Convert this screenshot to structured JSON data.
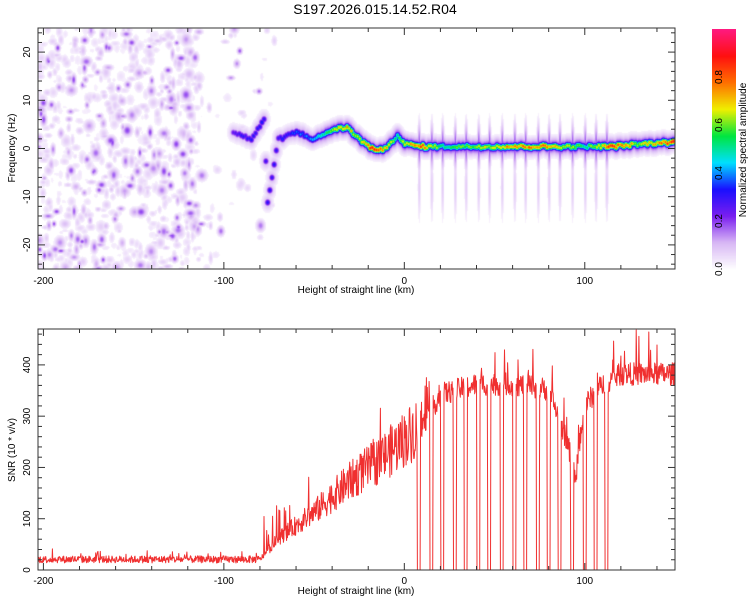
{
  "title": "S197.2026.015.14.52.R04",
  "chart_data": [
    {
      "type": "heatmap",
      "name": "spectrogram",
      "xlabel": "Height of straight line (km)",
      "ylabel": "Frequency (Hz)",
      "xlim": [
        -203,
        150
      ],
      "ylim": [
        -25,
        25
      ],
      "xticks": [
        -200,
        -100,
        0,
        100
      ],
      "yticks": [
        -20,
        -10,
        0,
        10,
        20
      ],
      "colorbar": {
        "label": "Normalized spectral amplitude",
        "range": [
          0.0,
          1.0
        ],
        "ticks": [
          "0.0",
          "0.2",
          "0.4",
          "0.6",
          "0.8"
        ],
        "colormap": [
          "#ffffff",
          "#d9b8f5",
          "#7a1ff0",
          "#1a10ff",
          "#00e0ff",
          "#00e640",
          "#f0f000",
          "#ff7000",
          "#ff1010",
          "#ff1a80"
        ]
      },
      "noise_region": {
        "x_from": -203,
        "x_to": -72,
        "level_max": 0.2
      },
      "ridge": [
        {
          "x": -95,
          "f": 3.5,
          "a": 0.3
        },
        {
          "x": -85,
          "f": 2.0,
          "a": 0.35
        },
        {
          "x": -78,
          "f": 6.0,
          "a": 0.35
        },
        {
          "x": -76,
          "f": -11.0,
          "a": 0.33
        },
        {
          "x": -70,
          "f": 2.0,
          "a": 0.35
        },
        {
          "x": -60,
          "f": 3.5,
          "a": 0.4
        },
        {
          "x": -50,
          "f": 2.0,
          "a": 0.45
        },
        {
          "x": -40,
          "f": 4.0,
          "a": 0.7
        },
        {
          "x": -32,
          "f": 4.5,
          "a": 0.8
        },
        {
          "x": -25,
          "f": 2.0,
          "a": 0.7
        },
        {
          "x": -18,
          "f": 0.0,
          "a": 0.95
        },
        {
          "x": -10,
          "f": 0.0,
          "a": 0.8
        },
        {
          "x": -4,
          "f": 3.0,
          "a": 0.6
        },
        {
          "x": 0,
          "f": 1.0,
          "a": 0.75
        },
        {
          "x": 10,
          "f": 0.5,
          "a": 0.9
        },
        {
          "x": 20,
          "f": 0.5,
          "a": 0.6
        },
        {
          "x": 40,
          "f": 0.5,
          "a": 0.7
        },
        {
          "x": 60,
          "f": 0.5,
          "a": 0.85
        },
        {
          "x": 80,
          "f": 0.5,
          "a": 0.85
        },
        {
          "x": 100,
          "f": 0.5,
          "a": 0.6
        },
        {
          "x": 115,
          "f": 0.5,
          "a": 0.95
        },
        {
          "x": 130,
          "f": 1.0,
          "a": 0.7
        },
        {
          "x": 150,
          "f": 1.5,
          "a": 0.95
        }
      ]
    },
    {
      "type": "line",
      "name": "snr",
      "xlabel": "Height of straight line (km)",
      "ylabel": "SNR (10 * v/v)",
      "xlim": [
        -203,
        150
      ],
      "ylim": [
        0,
        470
      ],
      "xticks": [
        -200,
        -100,
        0,
        100
      ],
      "yticks": [
        0,
        100,
        200,
        300,
        400
      ],
      "color": "#f03030",
      "trend": [
        {
          "x": -203,
          "y": 20
        },
        {
          "x": -80,
          "y": 20
        },
        {
          "x": -70,
          "y": 60
        },
        {
          "x": -50,
          "y": 110
        },
        {
          "x": -30,
          "y": 170
        },
        {
          "x": -10,
          "y": 220
        },
        {
          "x": 0,
          "y": 250
        },
        {
          "x": 10,
          "y": 280
        },
        {
          "x": 20,
          "y": 340
        },
        {
          "x": 40,
          "y": 360
        },
        {
          "x": 60,
          "y": 360
        },
        {
          "x": 80,
          "y": 350
        },
        {
          "x": 90,
          "y": 250
        },
        {
          "x": 95,
          "y": 180
        },
        {
          "x": 100,
          "y": 320
        },
        {
          "x": 110,
          "y": 360
        },
        {
          "x": 120,
          "y": 380
        },
        {
          "x": 150,
          "y": 380
        }
      ],
      "dropouts_to_zero_at": [
        8,
        15,
        21,
        28,
        34,
        41,
        47,
        54,
        61,
        67,
        74,
        80,
        86,
        93,
        100,
        106,
        112
      ]
    }
  ]
}
